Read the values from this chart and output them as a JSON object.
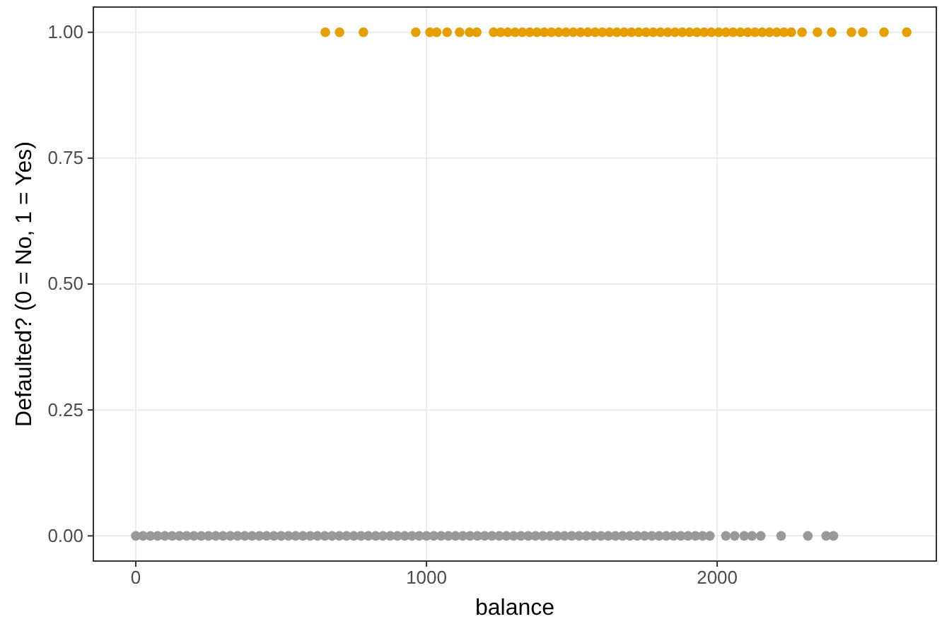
{
  "chart_data": {
    "type": "scatter",
    "xlabel": "balance",
    "ylabel": "Defaulted? (0 = No, 1 = Yes)",
    "xlim": [
      -146,
      2754
    ],
    "ylim": [
      -0.05,
      1.05
    ],
    "xticks": [
      0,
      1000,
      2000
    ],
    "yticks": [
      {
        "value": 0,
        "label": "0.00"
      },
      {
        "value": 0.25,
        "label": "0.25"
      },
      {
        "value": 0.5,
        "label": "0.50"
      },
      {
        "value": 0.75,
        "label": "0.75"
      },
      {
        "value": 1,
        "label": "1.00"
      }
    ],
    "grid": true,
    "marker": "circle",
    "series": [
      {
        "color": "#999999",
        "x": [
          0,
          25,
          50,
          75,
          100,
          125,
          150,
          175,
          200,
          225,
          250,
          275,
          300,
          325,
          350,
          375,
          400,
          425,
          450,
          475,
          500,
          525,
          550,
          575,
          600,
          625,
          650,
          675,
          700,
          725,
          750,
          775,
          800,
          825,
          850,
          875,
          900,
          925,
          950,
          975,
          1000,
          1025,
          1050,
          1075,
          1100,
          1125,
          1150,
          1175,
          1200,
          1225,
          1250,
          1275,
          1300,
          1325,
          1350,
          1375,
          1400,
          1425,
          1450,
          1475,
          1500,
          1525,
          1550,
          1575,
          1600,
          1625,
          1650,
          1675,
          1700,
          1725,
          1750,
          1775,
          1800,
          1825,
          1850,
          1875,
          1900,
          1925,
          1950,
          1975,
          2030,
          2060,
          2093,
          2120,
          2150,
          2220,
          2312,
          2375,
          2400
        ],
        "values": [
          0,
          0,
          0,
          0,
          0,
          0,
          0,
          0,
          0,
          0,
          0,
          0,
          0,
          0,
          0,
          0,
          0,
          0,
          0,
          0,
          0,
          0,
          0,
          0,
          0,
          0,
          0,
          0,
          0,
          0,
          0,
          0,
          0,
          0,
          0,
          0,
          0,
          0,
          0,
          0,
          0,
          0,
          0,
          0,
          0,
          0,
          0,
          0,
          0,
          0,
          0,
          0,
          0,
          0,
          0,
          0,
          0,
          0,
          0,
          0,
          0,
          0,
          0,
          0,
          0,
          0,
          0,
          0,
          0,
          0,
          0,
          0,
          0,
          0,
          0,
          0,
          0,
          0,
          0,
          0,
          0,
          0,
          0,
          0,
          0,
          0,
          0,
          0,
          0
        ]
      },
      {
        "color": "#e69f00",
        "x": [
          652,
          701,
          783,
          963,
          1012,
          1035,
          1071,
          1114,
          1148,
          1173,
          1231,
          1255,
          1280,
          1305,
          1330,
          1355,
          1380,
          1405,
          1430,
          1455,
          1480,
          1505,
          1530,
          1555,
          1580,
          1605,
          1630,
          1655,
          1680,
          1705,
          1730,
          1755,
          1780,
          1805,
          1830,
          1855,
          1880,
          1905,
          1930,
          1955,
          1980,
          2005,
          2030,
          2055,
          2080,
          2105,
          2130,
          2155,
          2180,
          2205,
          2230,
          2255,
          2292,
          2345,
          2394,
          2462,
          2501,
          2574,
          2652
        ],
        "values": [
          1,
          1,
          1,
          1,
          1,
          1,
          1,
          1,
          1,
          1,
          1,
          1,
          1,
          1,
          1,
          1,
          1,
          1,
          1,
          1,
          1,
          1,
          1,
          1,
          1,
          1,
          1,
          1,
          1,
          1,
          1,
          1,
          1,
          1,
          1,
          1,
          1,
          1,
          1,
          1,
          1,
          1,
          1,
          1,
          1,
          1,
          1,
          1,
          1,
          1,
          1,
          1,
          1,
          1,
          1,
          1,
          1,
          1,
          1
        ]
      }
    ]
  }
}
